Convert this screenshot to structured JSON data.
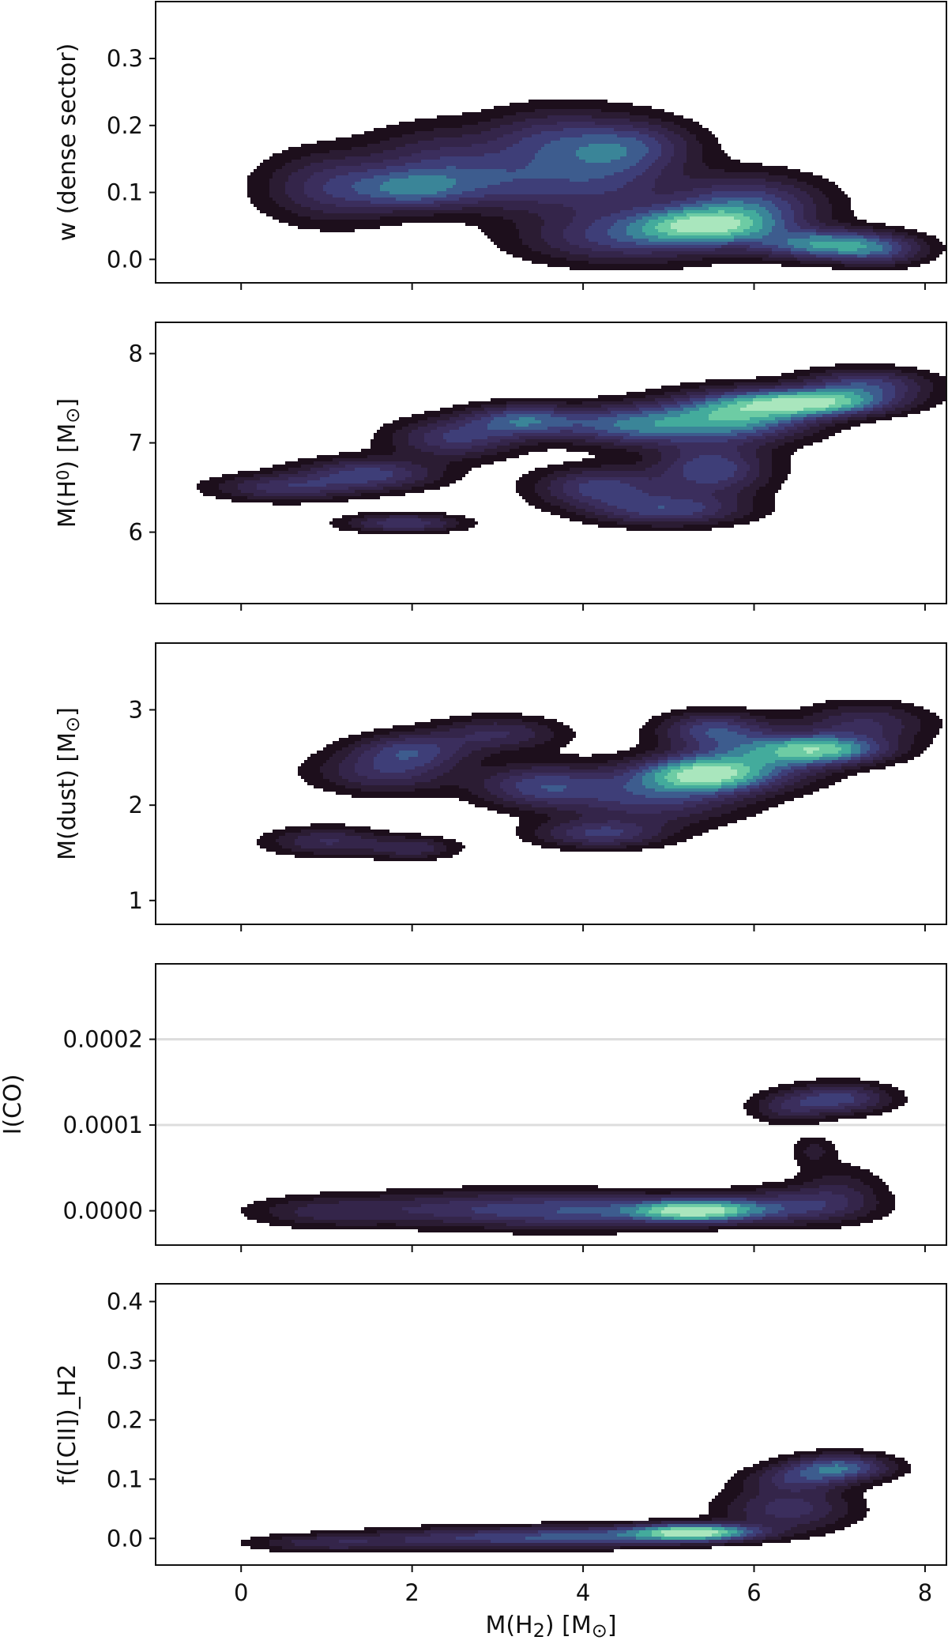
{
  "chart_data": [
    {
      "type": "heatmap",
      "subtype": "kde-contour",
      "ylabel_parts": [
        {
          "t": "w (dense sector)"
        }
      ],
      "xlim": [
        -1.0,
        8.25
      ],
      "ylim": [
        -0.035,
        0.385
      ],
      "yticks": [
        0.0,
        0.1,
        0.2,
        0.3
      ],
      "ytick_labels": [
        "0.0",
        "0.1",
        "0.2",
        "0.3"
      ],
      "xticks": [
        0,
        2,
        4,
        6,
        8
      ],
      "show_xtick_labels": false,
      "grid": false,
      "density": [
        {
          "x": 1.1,
          "y": 0.108,
          "sx": 0.55,
          "sy": 0.035,
          "w": 0.5
        },
        {
          "x": 2.0,
          "y": 0.105,
          "sx": 0.45,
          "sy": 0.02,
          "w": 0.55
        },
        {
          "x": 2.3,
          "y": 0.15,
          "sx": 0.55,
          "sy": 0.035,
          "w": 0.35
        },
        {
          "x": 3.0,
          "y": 0.115,
          "sx": 0.6,
          "sy": 0.03,
          "w": 0.45
        },
        {
          "x": 3.5,
          "y": 0.18,
          "sx": 0.5,
          "sy": 0.03,
          "w": 0.35
        },
        {
          "x": 4.2,
          "y": 0.13,
          "sx": 0.6,
          "sy": 0.05,
          "w": 0.55
        },
        {
          "x": 4.6,
          "y": 0.17,
          "sx": 0.5,
          "sy": 0.025,
          "w": 0.4
        },
        {
          "x": 5.4,
          "y": 0.05,
          "sx": 0.55,
          "sy": 0.018,
          "w": 1.0
        },
        {
          "x": 5.9,
          "y": 0.08,
          "sx": 0.6,
          "sy": 0.03,
          "w": 0.7
        },
        {
          "x": 6.9,
          "y": 0.022,
          "sx": 0.55,
          "sy": 0.015,
          "w": 0.95
        },
        {
          "x": 7.5,
          "y": 0.01,
          "sx": 0.35,
          "sy": 0.015,
          "w": 0.35
        },
        {
          "x": 4.5,
          "y": 0.03,
          "sx": 0.8,
          "sy": 0.025,
          "w": 0.5
        }
      ]
    },
    {
      "type": "heatmap",
      "subtype": "kde-contour",
      "ylabel_parts": [
        {
          "t": "M(H"
        },
        {
          "t": "0",
          "sup": true
        },
        {
          "t": ") [M"
        },
        {
          "t": "⊙",
          "sub": true
        },
        {
          "t": "]"
        }
      ],
      "xlim": [
        -1.0,
        8.25
      ],
      "ylim": [
        5.2,
        8.35
      ],
      "yticks": [
        6,
        7,
        8
      ],
      "ytick_labels": [
        "6",
        "7",
        "8"
      ],
      "xticks": [
        0,
        2,
        4,
        6,
        8
      ],
      "show_xtick_labels": false,
      "grid": false,
      "density": [
        {
          "x": 0.5,
          "y": 6.5,
          "sx": 0.55,
          "sy": 0.1,
          "w": 0.4
        },
        {
          "x": 1.5,
          "y": 6.65,
          "sx": 0.55,
          "sy": 0.12,
          "w": 0.5
        },
        {
          "x": 1.9,
          "y": 6.1,
          "sx": 0.45,
          "sy": 0.07,
          "w": 0.45
        },
        {
          "x": 2.5,
          "y": 7.05,
          "sx": 0.5,
          "sy": 0.15,
          "w": 0.45
        },
        {
          "x": 3.3,
          "y": 7.25,
          "sx": 0.45,
          "sy": 0.12,
          "w": 0.6
        },
        {
          "x": 4.2,
          "y": 6.5,
          "sx": 0.5,
          "sy": 0.15,
          "w": 0.5
        },
        {
          "x": 4.6,
          "y": 7.2,
          "sx": 0.6,
          "sy": 0.15,
          "w": 0.65
        },
        {
          "x": 5.0,
          "y": 6.25,
          "sx": 0.6,
          "sy": 0.12,
          "w": 0.5
        },
        {
          "x": 5.5,
          "y": 6.7,
          "sx": 0.45,
          "sy": 0.2,
          "w": 0.55
        },
        {
          "x": 5.8,
          "y": 7.3,
          "sx": 0.6,
          "sy": 0.18,
          "w": 0.85
        },
        {
          "x": 6.7,
          "y": 7.45,
          "sx": 0.6,
          "sy": 0.1,
          "w": 1.0
        },
        {
          "x": 7.3,
          "y": 7.65,
          "sx": 0.5,
          "sy": 0.12,
          "w": 0.5
        }
      ]
    },
    {
      "type": "heatmap",
      "subtype": "kde-contour",
      "ylabel_parts": [
        {
          "t": "M(dust) [M"
        },
        {
          "t": "⊙",
          "sub": true
        },
        {
          "t": "]"
        }
      ],
      "xlim": [
        -1.0,
        8.25
      ],
      "ylim": [
        0.75,
        3.7
      ],
      "yticks": [
        1,
        2,
        3
      ],
      "ytick_labels": [
        "1",
        "2",
        "3"
      ],
      "xticks": [
        0,
        2,
        4,
        6,
        8
      ],
      "show_xtick_labels": false,
      "grid": false,
      "density": [
        {
          "x": 1.0,
          "y": 1.62,
          "sx": 0.45,
          "sy": 0.1,
          "w": 0.4
        },
        {
          "x": 1.7,
          "y": 2.35,
          "sx": 0.55,
          "sy": 0.15,
          "w": 0.45
        },
        {
          "x": 2.0,
          "y": 2.58,
          "sx": 0.45,
          "sy": 0.12,
          "w": 0.5
        },
        {
          "x": 2.0,
          "y": 1.55,
          "sx": 0.35,
          "sy": 0.08,
          "w": 0.35
        },
        {
          "x": 3.0,
          "y": 2.75,
          "sx": 0.5,
          "sy": 0.12,
          "w": 0.4
        },
        {
          "x": 3.5,
          "y": 2.2,
          "sx": 0.5,
          "sy": 0.15,
          "w": 0.55
        },
        {
          "x": 4.2,
          "y": 1.7,
          "sx": 0.5,
          "sy": 0.1,
          "w": 0.5
        },
        {
          "x": 4.8,
          "y": 2.1,
          "sx": 0.7,
          "sy": 0.2,
          "w": 0.55
        },
        {
          "x": 5.4,
          "y": 2.32,
          "sx": 0.5,
          "sy": 0.12,
          "w": 1.0
        },
        {
          "x": 5.5,
          "y": 2.8,
          "sx": 0.4,
          "sy": 0.12,
          "w": 0.5
        },
        {
          "x": 6.0,
          "y": 2.5,
          "sx": 0.6,
          "sy": 0.2,
          "w": 0.6
        },
        {
          "x": 6.8,
          "y": 2.58,
          "sx": 0.5,
          "sy": 0.1,
          "w": 0.95
        },
        {
          "x": 7.3,
          "y": 2.85,
          "sx": 0.5,
          "sy": 0.15,
          "w": 0.4
        }
      ]
    },
    {
      "type": "heatmap",
      "subtype": "kde-contour",
      "ylabel_parts": [
        {
          "t": "I(CO)"
        }
      ],
      "xlim": [
        -1.0,
        8.25
      ],
      "ylim": [
        -4e-05,
        0.000288
      ],
      "yticks": [
        0.0,
        0.0001,
        0.0002
      ],
      "ytick_labels": [
        "0.0000",
        "0.0001",
        "0.0002"
      ],
      "xticks": [
        0,
        2,
        4,
        6,
        8
      ],
      "show_xtick_labels": false,
      "grid": true,
      "density": [
        {
          "x": 1.0,
          "y": -1e-06,
          "sx": 0.6,
          "sy": 1.2e-05,
          "w": 0.25
        },
        {
          "x": 2.5,
          "y": 2e-06,
          "sx": 0.8,
          "sy": 1.4e-05,
          "w": 0.3
        },
        {
          "x": 4.0,
          "y": 0.0,
          "sx": 0.8,
          "sy": 1.4e-05,
          "w": 0.45
        },
        {
          "x": 5.3,
          "y": 0.0,
          "sx": 0.5,
          "sy": 9e-06,
          "w": 1.0
        },
        {
          "x": 6.4,
          "y": 5e-06,
          "sx": 0.6,
          "sy": 1.4e-05,
          "w": 0.4
        },
        {
          "x": 7.0,
          "y": 2.5e-05,
          "sx": 0.35,
          "sy": 2e-05,
          "w": 0.18
        },
        {
          "x": 6.7,
          "y": 7e-05,
          "sx": 0.18,
          "sy": 1.2e-05,
          "w": 0.16
        },
        {
          "x": 7.0,
          "y": 0.000131,
          "sx": 0.4,
          "sy": 1.2e-05,
          "w": 0.45
        },
        {
          "x": 6.4,
          "y": 0.00012,
          "sx": 0.3,
          "sy": 1.2e-05,
          "w": 0.25
        }
      ]
    },
    {
      "type": "heatmap",
      "subtype": "kde-contour",
      "ylabel_parts": [
        {
          "t": "f([CII])_H2"
        }
      ],
      "xlim": [
        -1.0,
        8.25
      ],
      "ylim": [
        -0.045,
        0.43
      ],
      "yticks": [
        0.0,
        0.1,
        0.2,
        0.3,
        0.4
      ],
      "ytick_labels": [
        "0.0",
        "0.1",
        "0.2",
        "0.3",
        "0.4"
      ],
      "xticks": [
        0,
        2,
        4,
        6,
        8
      ],
      "xtick_labels": [
        "0",
        "2",
        "4",
        "6",
        "8"
      ],
      "show_xtick_labels": true,
      "xlabel_parts": [
        {
          "t": "M(H"
        },
        {
          "t": "2",
          "sub": true
        },
        {
          "t": ") [M"
        },
        {
          "t": "⊙",
          "sub": true
        },
        {
          "t": "]"
        }
      ],
      "grid": false,
      "density": [
        {
          "x": 1.0,
          "y": -0.008,
          "sx": 0.6,
          "sy": 0.01,
          "w": 0.25
        },
        {
          "x": 2.5,
          "y": 0.0,
          "sx": 0.8,
          "sy": 0.012,
          "w": 0.3
        },
        {
          "x": 4.0,
          "y": 0.003,
          "sx": 0.8,
          "sy": 0.012,
          "w": 0.45
        },
        {
          "x": 5.3,
          "y": 0.01,
          "sx": 0.5,
          "sy": 0.01,
          "w": 1.0
        },
        {
          "x": 6.4,
          "y": 0.05,
          "sx": 0.5,
          "sy": 0.025,
          "w": 0.35
        },
        {
          "x": 7.0,
          "y": 0.12,
          "sx": 0.4,
          "sy": 0.015,
          "w": 0.55
        },
        {
          "x": 6.5,
          "y": 0.1,
          "sx": 0.4,
          "sy": 0.015,
          "w": 0.3
        }
      ]
    }
  ],
  "colors": {
    "background": "#ffffff",
    "axes": "#111111",
    "grid": "#dddddd",
    "density_levels": [
      "#1d0f1c",
      "#2b1c33",
      "#34254a",
      "#3b2e5d",
      "#3e3e78",
      "#3d5c8e",
      "#3a8598",
      "#43ab9c",
      "#6dcca4",
      "#a9e6bd"
    ]
  }
}
